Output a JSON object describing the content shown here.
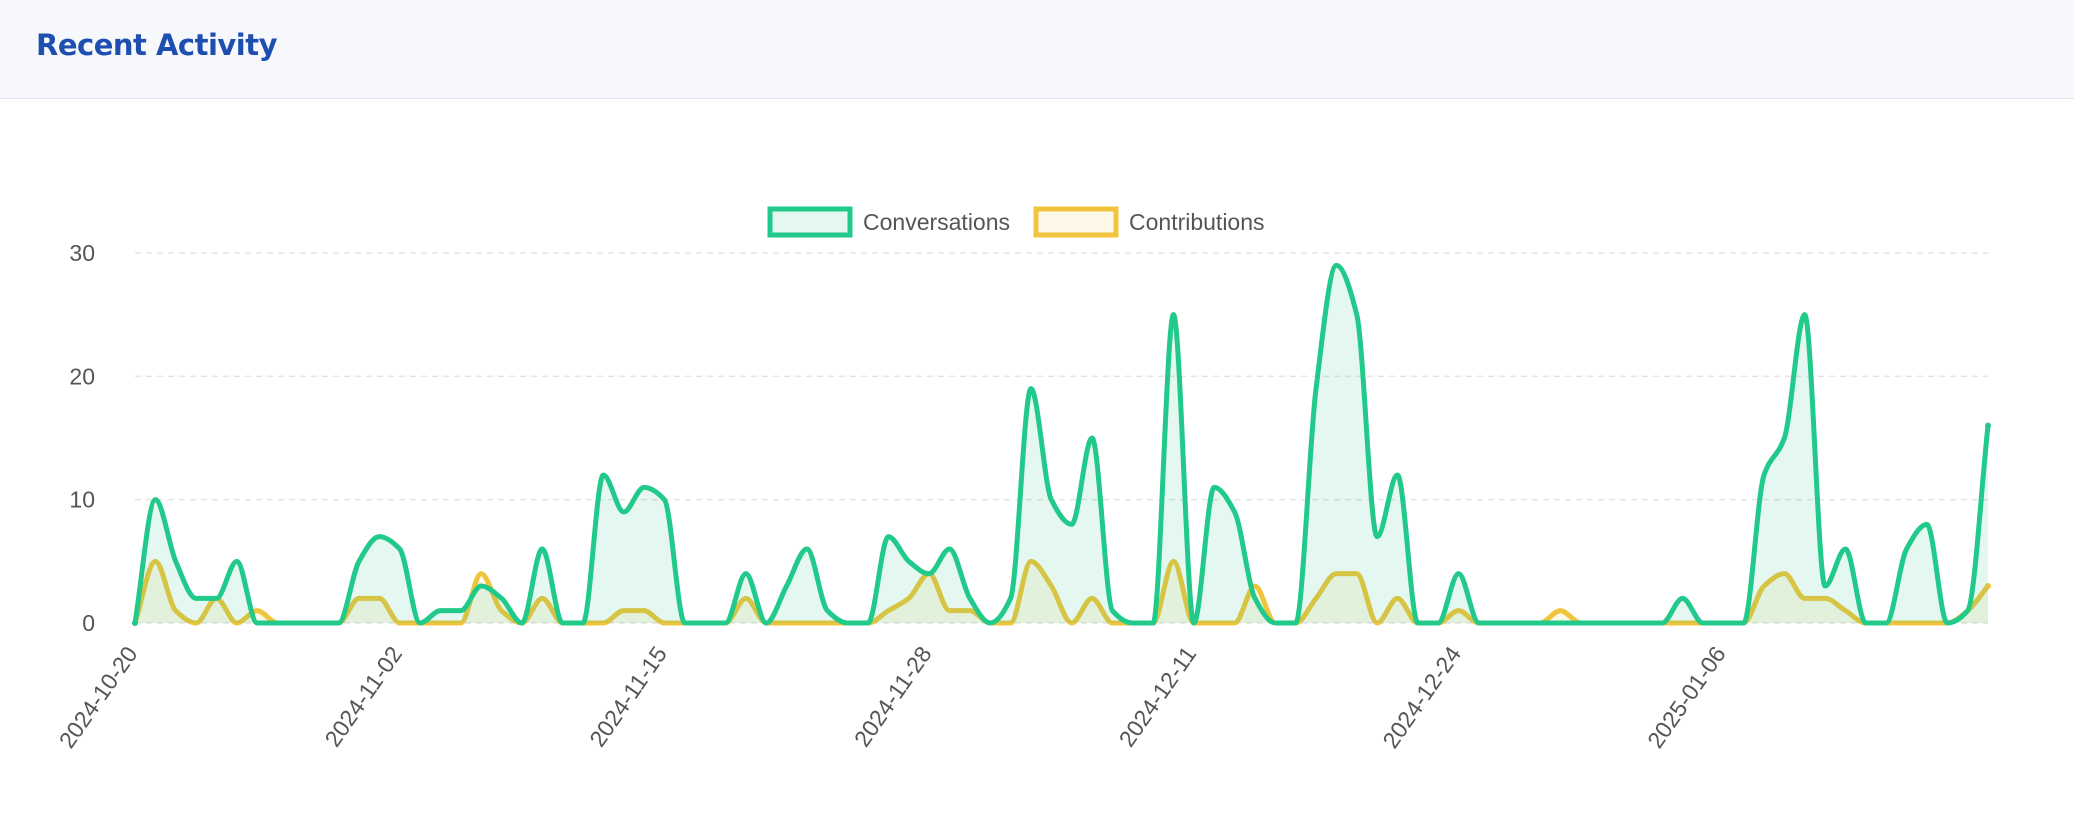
{
  "card": {
    "title": "Recent Activity"
  },
  "colors": {
    "title": "#1e4fb0",
    "conversations": "#21c98a",
    "contributions": "#f0c43c"
  },
  "chart_data": {
    "type": "area",
    "title": "",
    "xlabel": "",
    "ylabel": "",
    "ylim": [
      0,
      30
    ],
    "yticks": [
      0,
      10,
      20,
      30
    ],
    "grid": true,
    "legend_position": "top-center",
    "x_tick_labels": [
      "2024-10-20",
      "2024-11-02",
      "2024-11-15",
      "2024-11-28",
      "2024-12-11",
      "2024-12-24",
      "2025-01-06"
    ],
    "x_tick_every": 13,
    "x_start": "2024-10-20",
    "x_end": "2025-01-18",
    "series": [
      {
        "name": "Conversations",
        "color": "#21c98a",
        "values": [
          0,
          10,
          5,
          2,
          2,
          5,
          0,
          0,
          0,
          0,
          0,
          5,
          7,
          6,
          0,
          1,
          1,
          3,
          2,
          0,
          6,
          0,
          0,
          12,
          9,
          11,
          10,
          0,
          0,
          0,
          4,
          0,
          3,
          6,
          1,
          0,
          0,
          7,
          5,
          4,
          6,
          2,
          0,
          2,
          19,
          10,
          8,
          15,
          1,
          0,
          0,
          25,
          0,
          11,
          9,
          2,
          0,
          0,
          19,
          29,
          25,
          7,
          12,
          0,
          0,
          4,
          0,
          0,
          0,
          0,
          0,
          0,
          0,
          0,
          0,
          0,
          2,
          0,
          0,
          0,
          12,
          15,
          25,
          3,
          6,
          0,
          0,
          6,
          8,
          0,
          1,
          16
        ]
      },
      {
        "name": "Contributions",
        "color": "#f0c43c",
        "values": [
          0,
          5,
          1,
          0,
          2,
          0,
          1,
          0,
          0,
          0,
          0,
          2,
          2,
          0,
          0,
          0,
          0,
          4,
          1,
          0,
          2,
          0,
          0,
          0,
          1,
          1,
          0,
          0,
          0,
          0,
          2,
          0,
          0,
          0,
          0,
          0,
          0,
          1,
          2,
          4,
          1,
          1,
          0,
          0,
          5,
          3,
          0,
          2,
          0,
          0,
          0,
          5,
          0,
          0,
          0,
          3,
          0,
          0,
          2,
          4,
          4,
          0,
          2,
          0,
          0,
          1,
          0,
          0,
          0,
          0,
          1,
          0,
          0,
          0,
          0,
          0,
          0,
          0,
          0,
          0,
          3,
          4,
          2,
          2,
          1,
          0,
          0,
          0,
          0,
          0,
          1,
          3
        ]
      }
    ]
  }
}
